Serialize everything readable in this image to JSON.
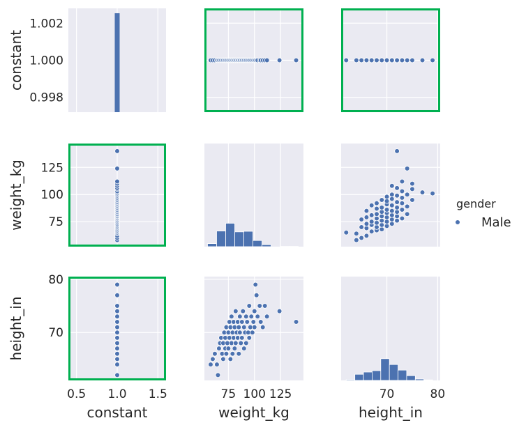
{
  "colors": {
    "panel_bg": "#EAEAF2",
    "grid": "#FFFFFF",
    "marker": "#4C72B0",
    "highlight": "#00B050",
    "text": "#262626"
  },
  "chart_data": {
    "type": "pairplot",
    "variables": [
      "constant",
      "weight_kg",
      "height_in"
    ],
    "hue": "gender",
    "legend": {
      "title": "gender",
      "entries": [
        "Male"
      ],
      "placement": "right"
    },
    "highlighted_panels": [
      [
        0,
        1
      ],
      [
        0,
        2
      ],
      [
        1,
        0
      ],
      [
        2,
        0
      ]
    ],
    "axes": {
      "constant": {
        "label": "constant",
        "diag_range": [
          0.4,
          1.6
        ],
        "diag_ticks": [
          "0.5",
          "1.0",
          "1.5"
        ],
        "scatter_range": [
          0.9972,
          1.0028
        ],
        "scatter_ticks": [
          "0.998",
          "1.000",
          "1.002"
        ]
      },
      "weight_kg": {
        "label": "weight_kg",
        "range": [
          52,
          147
        ],
        "ticks": [
          "75",
          "100",
          "125"
        ]
      },
      "height_in": {
        "label": "height_in",
        "range": [
          61,
          80.5
        ],
        "ticks": [
          "70",
          "80"
        ],
        "yticks": [
          "70",
          "80"
        ]
      }
    },
    "hist_constant": {
      "bins": [
        [
          0.97,
          1.03
        ]
      ]
    },
    "hist_weight": {
      "edges": [
        55,
        63.7,
        72.4,
        81.1,
        89.8,
        98.5,
        107.2,
        115.9,
        124.6,
        133.3,
        142
      ],
      "heights": [
        0.11,
        0.56,
        0.84,
        0.53,
        0.55,
        0.22,
        0.07,
        0,
        0.01,
        0.01
      ]
    },
    "hist_height": {
      "edges": [
        62,
        63.7,
        65.4,
        67.1,
        68.8,
        70.5,
        72.2,
        73.9,
        75.6,
        77.3,
        79
      ],
      "heights": [
        0.03,
        0.22,
        0.3,
        0.35,
        0.78,
        0.57,
        0.37,
        0.17,
        0.05,
        0.02
      ]
    },
    "points": [
      {
        "weight_kg": 58,
        "height_in": 64
      },
      {
        "weight_kg": 60,
        "height_in": 65
      },
      {
        "weight_kg": 62,
        "height_in": 66
      },
      {
        "weight_kg": 64,
        "height_in": 64
      },
      {
        "weight_kg": 65,
        "height_in": 62
      },
      {
        "weight_kg": 66,
        "height_in": 67
      },
      {
        "weight_kg": 67,
        "height_in": 68
      },
      {
        "weight_kg": 68,
        "height_in": 69
      },
      {
        "weight_kg": 69,
        "height_in": 66
      },
      {
        "weight_kg": 70,
        "height_in": 65
      },
      {
        "weight_kg": 70,
        "height_in": 68
      },
      {
        "weight_kg": 71,
        "height_in": 70
      },
      {
        "weight_kg": 72,
        "height_in": 67
      },
      {
        "weight_kg": 72,
        "height_in": 69
      },
      {
        "weight_kg": 73,
        "height_in": 71
      },
      {
        "weight_kg": 73,
        "height_in": 66
      },
      {
        "weight_kg": 74,
        "height_in": 68
      },
      {
        "weight_kg": 75,
        "height_in": 70
      },
      {
        "weight_kg": 75,
        "height_in": 67
      },
      {
        "weight_kg": 76,
        "height_in": 72
      },
      {
        "weight_kg": 76,
        "height_in": 69
      },
      {
        "weight_kg": 77,
        "height_in": 65
      },
      {
        "weight_kg": 77,
        "height_in": 71
      },
      {
        "weight_kg": 78,
        "height_in": 68
      },
      {
        "weight_kg": 78,
        "height_in": 73
      },
      {
        "weight_kg": 79,
        "height_in": 70
      },
      {
        "weight_kg": 79,
        "height_in": 66
      },
      {
        "weight_kg": 80,
        "height_in": 69
      },
      {
        "weight_kg": 80,
        "height_in": 72
      },
      {
        "weight_kg": 81,
        "height_in": 71
      },
      {
        "weight_kg": 81,
        "height_in": 67
      },
      {
        "weight_kg": 82,
        "height_in": 74
      },
      {
        "weight_kg": 82,
        "height_in": 68
      },
      {
        "weight_kg": 83,
        "height_in": 70
      },
      {
        "weight_kg": 84,
        "height_in": 72
      },
      {
        "weight_kg": 84,
        "height_in": 69
      },
      {
        "weight_kg": 85,
        "height_in": 71
      },
      {
        "weight_kg": 85,
        "height_in": 66
      },
      {
        "weight_kg": 86,
        "height_in": 73
      },
      {
        "weight_kg": 86,
        "height_in": 70
      },
      {
        "weight_kg": 87,
        "height_in": 68
      },
      {
        "weight_kg": 88,
        "height_in": 72
      },
      {
        "weight_kg": 88,
        "height_in": 69
      },
      {
        "weight_kg": 89,
        "height_in": 74
      },
      {
        "weight_kg": 90,
        "height_in": 71
      },
      {
        "weight_kg": 90,
        "height_in": 67
      },
      {
        "weight_kg": 91,
        "height_in": 70
      },
      {
        "weight_kg": 92,
        "height_in": 73
      },
      {
        "weight_kg": 92,
        "height_in": 68
      },
      {
        "weight_kg": 93,
        "height_in": 72
      },
      {
        "weight_kg": 94,
        "height_in": 70
      },
      {
        "weight_kg": 95,
        "height_in": 75
      },
      {
        "weight_kg": 95,
        "height_in": 69
      },
      {
        "weight_kg": 96,
        "height_in": 71
      },
      {
        "weight_kg": 97,
        "height_in": 73
      },
      {
        "weight_kg": 98,
        "height_in": 70
      },
      {
        "weight_kg": 99,
        "height_in": 72
      },
      {
        "weight_kg": 100,
        "height_in": 74
      },
      {
        "weight_kg": 100,
        "height_in": 71
      },
      {
        "weight_kg": 101,
        "height_in": 79
      },
      {
        "weight_kg": 102,
        "height_in": 77
      },
      {
        "weight_kg": 103,
        "height_in": 73
      },
      {
        "weight_kg": 105,
        "height_in": 75
      },
      {
        "weight_kg": 106,
        "height_in": 72
      },
      {
        "weight_kg": 108,
        "height_in": 71
      },
      {
        "weight_kg": 110,
        "height_in": 75
      },
      {
        "weight_kg": 112,
        "height_in": 73
      },
      {
        "weight_kg": 124,
        "height_in": 74
      },
      {
        "weight_kg": 140,
        "height_in": 72
      }
    ]
  }
}
